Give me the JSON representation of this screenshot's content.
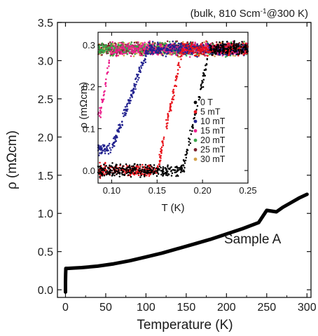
{
  "annotation": "(bulk, 810 Scm<sup>-1</sup>@300 K)",
  "annotation_parts": {
    "pre": "(bulk, 810 Scm",
    "sup": "-1",
    "post": "@300 K)"
  },
  "sample_label": "Sample A",
  "chart_data": [
    {
      "type": "line",
      "xlabel": "Temperature (K)",
      "ylabel": "ρ (mΩcm)",
      "xlim": [
        -10,
        305
      ],
      "ylim": [
        -0.1,
        3.5
      ],
      "xticks": [
        0,
        50,
        100,
        150,
        200,
        250,
        300
      ],
      "yticks": [
        0.0,
        0.5,
        1.0,
        1.5,
        2.0,
        2.5,
        3.0,
        3.5
      ],
      "xtick_labels": [
        "0",
        "50",
        "100",
        "150",
        "200",
        "250",
        "300"
      ],
      "ytick_labels": [
        "0.0",
        "0.5",
        "1.0",
        "1.5",
        "2.0",
        "2.5",
        "3.0",
        "3.5"
      ],
      "series": [
        {
          "color": "#000000",
          "x": [
            0,
            0,
            0.2,
            0.4,
            1,
            3,
            10,
            20,
            40,
            60,
            80,
            100,
            120,
            140,
            160,
            180,
            200,
            220,
            240,
            250,
            262,
            270,
            280,
            290,
            300
          ],
          "y": [
            -0.03,
            0.1,
            0.2,
            0.28,
            0.28,
            0.28,
            0.285,
            0.29,
            0.31,
            0.34,
            0.38,
            0.43,
            0.48,
            0.54,
            0.6,
            0.66,
            0.73,
            0.8,
            0.88,
            1.04,
            1.02,
            1.08,
            1.14,
            1.2,
            1.25
          ]
        }
      ]
    },
    {
      "type": "scatter",
      "xlabel": "T (K)",
      "ylabel": "ρ (mΩcm)",
      "xlim": [
        0.085,
        0.25
      ],
      "ylim": [
        -0.03,
        0.33
      ],
      "xticks": [
        0.1,
        0.15,
        0.2,
        0.25
      ],
      "yticks": [
        0.0,
        0.1,
        0.2,
        0.3
      ],
      "xtick_labels": [
        "0.10",
        "0.15",
        "0.20",
        "0.25"
      ],
      "ytick_labels": [
        "0.0",
        "0.1",
        "0.2",
        "0.3"
      ],
      "legend_position": "right",
      "series": [
        {
          "name": "0 T",
          "color": "#000000",
          "tc_low": 0.178,
          "tc_high": 0.208,
          "rho_min": 0.0,
          "rho_max": 0.29
        },
        {
          "name": "5 mT",
          "color": "#e8141c",
          "tc_low": 0.15,
          "tc_high": 0.178,
          "rho_min": 0.0,
          "rho_max": 0.29
        },
        {
          "name": "10 mT",
          "color": "#23238f",
          "tc_low": 0.1,
          "tc_high": 0.14,
          "rho_min": 0.05,
          "rho_max": 0.29
        },
        {
          "name": "15 mT",
          "color": "#ec1f8c",
          "tc_low": 0.088,
          "tc_high": 0.1,
          "rho_min": 0.14,
          "rho_max": 0.29
        },
        {
          "name": "20 mT",
          "color": "#3aa54a",
          "tc_low": null,
          "tc_high": null,
          "rho_min": 0.29,
          "rho_max": 0.29
        },
        {
          "name": "25 mT",
          "color": "#7a1f2a",
          "tc_low": null,
          "tc_high": null,
          "rho_min": 0.29,
          "rho_max": 0.29
        },
        {
          "name": "30 mT",
          "color": "#d2a14a",
          "tc_low": null,
          "tc_high": null,
          "rho_min": 0.29,
          "rho_max": 0.29
        }
      ]
    }
  ]
}
